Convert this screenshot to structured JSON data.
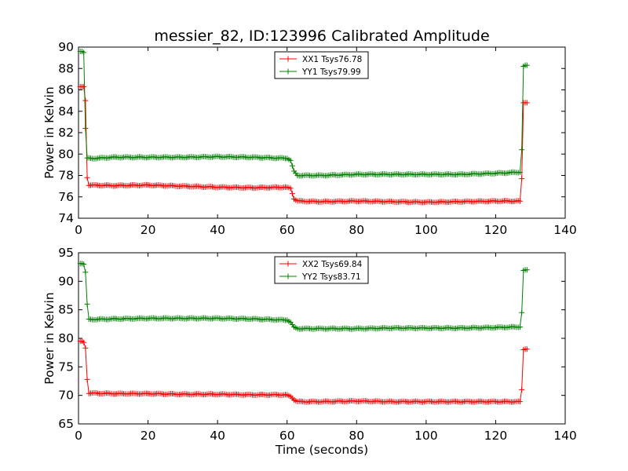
{
  "figure": {
    "title": "messier_82, ID:123996 Calibrated Amplitude"
  },
  "chart_data": [
    {
      "type": "line",
      "title": "messier_82, ID:123996 Calibrated Amplitude",
      "xlabel": "",
      "ylabel": "Power in Kelvin",
      "xlim": [
        0,
        140
      ],
      "ylim": [
        74,
        90
      ],
      "xticks": [
        0,
        20,
        40,
        60,
        80,
        100,
        120,
        140
      ],
      "yticks": [
        74,
        76,
        78,
        80,
        82,
        84,
        86,
        88,
        90
      ],
      "grid": false,
      "legend_position": "top-center",
      "marker": "+",
      "series": [
        {
          "name": "XX1 Tsys76.78",
          "color": "#ff0000",
          "points": [
            [
              0.5,
              86.3
            ],
            [
              1,
              86.3
            ],
            [
              1.5,
              86.3
            ],
            [
              2,
              85.0
            ],
            [
              2.5,
              77.8
            ],
            [
              3,
              77.1
            ],
            [
              10,
              77.05
            ],
            [
              20,
              77.1
            ],
            [
              30,
              77.0
            ],
            [
              40,
              76.9
            ],
            [
              50,
              76.85
            ],
            [
              60,
              76.9
            ],
            [
              61,
              76.8
            ],
            [
              62,
              75.8
            ],
            [
              63,
              75.6
            ],
            [
              70,
              75.55
            ],
            [
              80,
              75.6
            ],
            [
              90,
              75.55
            ],
            [
              100,
              75.5
            ],
            [
              110,
              75.55
            ],
            [
              120,
              75.6
            ],
            [
              127,
              75.6
            ],
            [
              127.5,
              77.7
            ],
            [
              128,
              84.8
            ],
            [
              128.5,
              84.8
            ],
            [
              129,
              84.8
            ]
          ]
        },
        {
          "name": "YY1 Tsys79.99",
          "color": "#008000",
          "points": [
            [
              0.5,
              89.6
            ],
            [
              1,
              89.6
            ],
            [
              1.5,
              89.5
            ],
            [
              2,
              82.4
            ],
            [
              2.5,
              79.6
            ],
            [
              5,
              79.6
            ],
            [
              10,
              79.7
            ],
            [
              20,
              79.7
            ],
            [
              30,
              79.7
            ],
            [
              40,
              79.75
            ],
            [
              50,
              79.7
            ],
            [
              60,
              79.6
            ],
            [
              61,
              79.4
            ],
            [
              62,
              78.4
            ],
            [
              63,
              78.0
            ],
            [
              70,
              78.0
            ],
            [
              80,
              78.1
            ],
            [
              90,
              78.1
            ],
            [
              100,
              78.1
            ],
            [
              110,
              78.1
            ],
            [
              120,
              78.2
            ],
            [
              127,
              78.3
            ],
            [
              127.5,
              80.4
            ],
            [
              128,
              88.2
            ],
            [
              128.5,
              88.3
            ],
            [
              129,
              88.3
            ]
          ]
        }
      ]
    },
    {
      "type": "line",
      "title": "",
      "xlabel": "Time (seconds)",
      "ylabel": "Power in Kelvin",
      "xlim": [
        0,
        140
      ],
      "ylim": [
        65,
        95
      ],
      "xticks": [
        0,
        20,
        40,
        60,
        80,
        100,
        120,
        140
      ],
      "yticks": [
        65,
        70,
        75,
        80,
        85,
        90,
        95
      ],
      "grid": false,
      "legend_position": "top-center",
      "marker": "+",
      "series": [
        {
          "name": "XX2 Tsys69.84",
          "color": "#ff0000",
          "points": [
            [
              0.5,
              79.5
            ],
            [
              1,
              79.5
            ],
            [
              1.5,
              79.3
            ],
            [
              2,
              78.3
            ],
            [
              2.5,
              72.8
            ],
            [
              3,
              70.4
            ],
            [
              10,
              70.3
            ],
            [
              20,
              70.3
            ],
            [
              30,
              70.2
            ],
            [
              40,
              70.2
            ],
            [
              50,
              70.1
            ],
            [
              60,
              70.1
            ],
            [
              61,
              69.8
            ],
            [
              62,
              69.2
            ],
            [
              63,
              68.9
            ],
            [
              70,
              68.9
            ],
            [
              80,
              69.0
            ],
            [
              90,
              68.9
            ],
            [
              100,
              68.9
            ],
            [
              110,
              68.9
            ],
            [
              120,
              68.9
            ],
            [
              127,
              68.9
            ],
            [
              127.5,
              71.0
            ],
            [
              128,
              78.0
            ],
            [
              128.5,
              78.1
            ],
            [
              129,
              78.1
            ]
          ]
        },
        {
          "name": "YY2 Tsys83.71",
          "color": "#008000",
          "points": [
            [
              0.5,
              93.1
            ],
            [
              1,
              93.1
            ],
            [
              1.5,
              93.0
            ],
            [
              2,
              91.6
            ],
            [
              2.5,
              86.0
            ],
            [
              3,
              83.3
            ],
            [
              10,
              83.4
            ],
            [
              20,
              83.5
            ],
            [
              30,
              83.5
            ],
            [
              40,
              83.5
            ],
            [
              50,
              83.4
            ],
            [
              60,
              83.2
            ],
            [
              61,
              82.8
            ],
            [
              62,
              82.0
            ],
            [
              63,
              81.7
            ],
            [
              70,
              81.7
            ],
            [
              80,
              81.7
            ],
            [
              90,
              81.8
            ],
            [
              100,
              81.8
            ],
            [
              110,
              81.8
            ],
            [
              120,
              81.9
            ],
            [
              127,
              82.0
            ],
            [
              127.5,
              84.5
            ],
            [
              128,
              91.9
            ],
            [
              128.5,
              92.0
            ],
            [
              129,
              92.0
            ]
          ]
        }
      ]
    }
  ]
}
